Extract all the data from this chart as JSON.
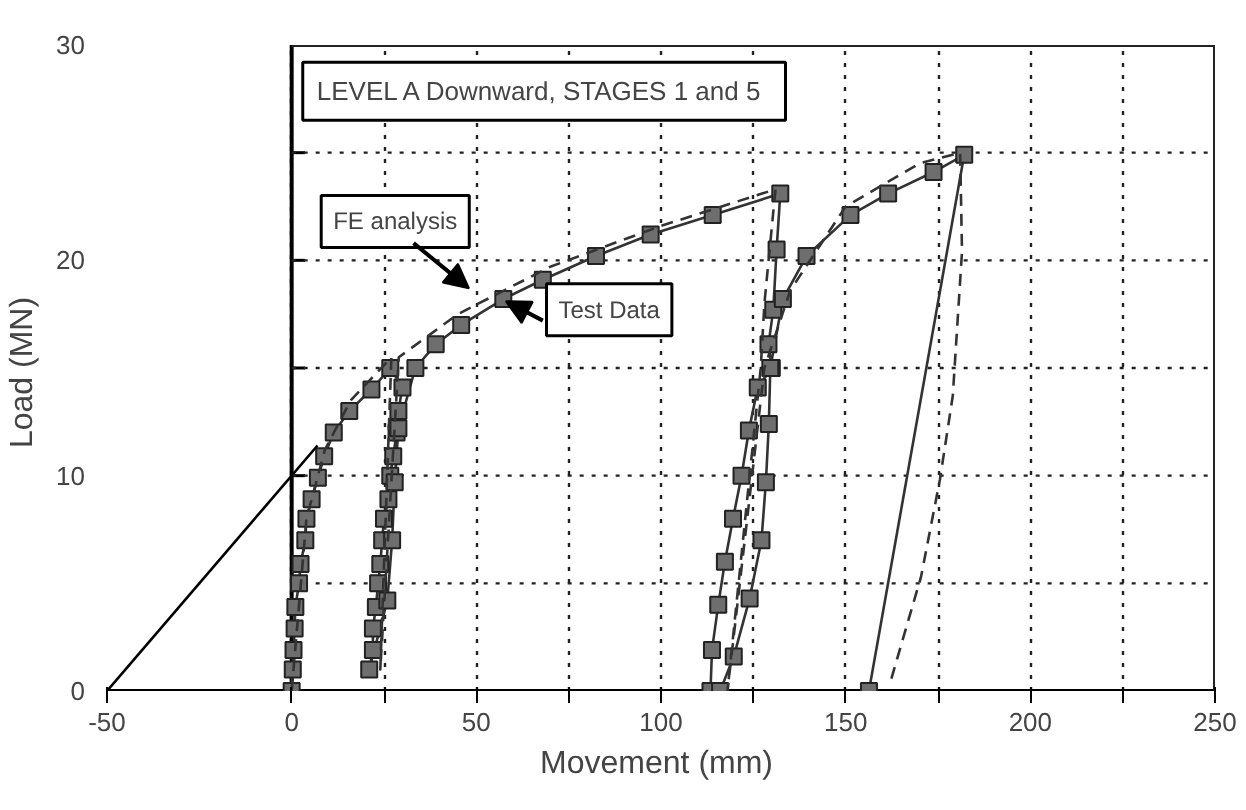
{
  "chart_data": {
    "type": "line",
    "xlabel": "Movement  (mm)",
    "ylabel": "Load  (MN)",
    "annotations": [
      "LEVEL A  Downward, STAGES 1 and 5"
    ],
    "xlim": [
      -50,
      250
    ],
    "ylim": [
      0,
      30
    ],
    "xticks": [
      -50,
      0,
      {
        "value": 25,
        "label": null
      },
      50,
      {
        "value": 75,
        "label": null
      },
      100,
      {
        "value": 125,
        "label": null
      },
      150,
      {
        "value": 175,
        "label": null
      },
      200,
      {
        "value": 225,
        "label": null
      },
      250
    ],
    "yticks": [
      0,
      {
        "value": 5,
        "label": null
      },
      10,
      {
        "value": 15,
        "label": null
      },
      20,
      {
        "value": 25,
        "label": null
      },
      30
    ],
    "grid": true,
    "series": [
      {
        "name": "Test Data",
        "color": "#333333",
        "marker": "square",
        "line_style": "solid",
        "x": [
          0,
          0.3,
          0.5,
          0.8,
          1.0,
          2.0,
          2.4,
          3.7,
          4.0,
          5.4,
          7.1,
          8.8,
          11.4,
          15.6,
          21.6,
          26.7,
          30.0,
          28.9,
          28.4,
          27.5,
          26.7,
          26.2,
          25.0,
          24.5,
          24.0,
          23.4,
          22.8,
          22.0,
          22.0,
          21.0,
          25.9,
          27.2,
          27.9,
          28.9,
          33.5,
          39.0,
          45.9,
          57.3,
          68.0,
          82.4,
          97.2,
          114.0,
          132.3,
          131.3,
          130.4,
          129.1,
          130.0,
          126.2,
          123.8,
          121.8,
          119.5,
          117.3,
          115.5,
          113.8,
          113.4,
          116.0,
          119.7,
          124.0,
          127.2,
          128.4,
          129.2,
          129.6,
          133.0,
          139.4,
          151.3,
          161.5,
          173.8,
          182.1,
          156.3
        ],
        "values": [
          0,
          1.0,
          1.9,
          2.9,
          3.9,
          5.0,
          5.9,
          7.0,
          8.0,
          8.9,
          9.9,
          10.9,
          12.0,
          13.0,
          14.0,
          15.0,
          14.1,
          13.0,
          12.0,
          10.9,
          10.0,
          8.9,
          8.0,
          7.0,
          5.9,
          5.0,
          3.9,
          2.9,
          1.9,
          1.0,
          4.2,
          7.0,
          9.7,
          12.2,
          15.0,
          16.1,
          17.0,
          18.2,
          19.1,
          20.2,
          21.2,
          22.1,
          23.1,
          20.5,
          17.7,
          16.1,
          15.0,
          14.1,
          12.1,
          10.0,
          8.0,
          6.0,
          4.0,
          1.9,
          0,
          0,
          1.6,
          4.3,
          7.0,
          9.7,
          12.4,
          15.0,
          18.2,
          20.2,
          22.1,
          23.1,
          24.1,
          24.9,
          0
        ]
      },
      {
        "name": "FE analysis",
        "color": "#333333",
        "marker": "none",
        "line_style": "dashed",
        "x": [
          0,
          4,
          9,
          16,
          27,
          24,
          29,
          45,
          70,
          100,
          131,
          128,
          127,
          118,
          128,
          135,
          150,
          170,
          181,
          181.5,
          179,
          175.5,
          170.4,
          161.9
        ],
        "values": [
          0,
          8.0,
          11.2,
          13.5,
          15.5,
          1.0,
          15.5,
          17.5,
          19.7,
          21.6,
          23.3,
          18.0,
          15.0,
          0,
          15.0,
          18.6,
          22.5,
          24.5,
          25.0,
          20.4,
          13.7,
          9.8,
          5.3,
          0.3
        ]
      },
      {
        "color": "#000000",
        "marker": "none",
        "line_style": "solid",
        "x": [
          -50,
          7
        ],
        "values": [
          0,
          11.4
        ]
      }
    ]
  }
}
